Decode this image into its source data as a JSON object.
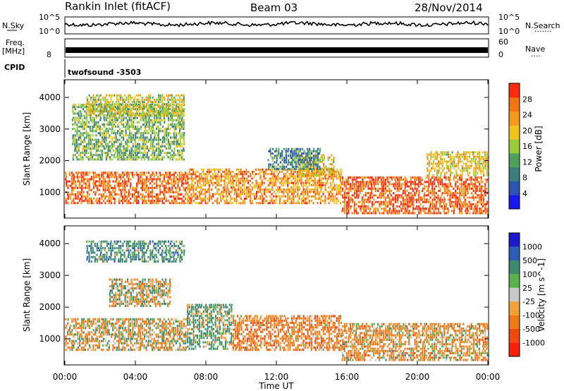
{
  "header": {
    "station": "Rankin Inlet (fitACF)",
    "beam": "Beam 03",
    "date": "28/Nov/2014"
  },
  "top_panel": {
    "nsky_label": "N.Sky",
    "nsky_ticks": [
      "10^5",
      "10^0"
    ],
    "nsearch_label": "N.Search",
    "nsearch_ticks": [
      "10^5",
      "10^0"
    ],
    "freq_label": "Freq.",
    "freq_unit": "[MHz]",
    "freq_ticks": [
      "",
      "8"
    ],
    "nave_label": "Nave",
    "nave_ticks": [
      "60",
      "0"
    ],
    "cpid_label": "CPID",
    "cpid_value": "twofsound -3503"
  },
  "chart_data": [
    {
      "type": "heatmap",
      "name": "power",
      "xlabel": "Time UT",
      "ylabel": "Slant Range [km]",
      "x_ticks": [
        "00:00",
        "04:00",
        "08:00",
        "12:00",
        "16:00",
        "20:00",
        "00:00"
      ],
      "x_range_hours": [
        0,
        24
      ],
      "y_ticks": [
        1000,
        2000,
        3000,
        4000
      ],
      "ylim": [
        180,
        4560
      ],
      "colorbar": {
        "label": "Power [dB]",
        "ticks": [
          4,
          8,
          12,
          16,
          20,
          24,
          28
        ],
        "range": [
          0,
          32
        ],
        "colors": [
          "#1717f0",
          "#2c55b3",
          "#3a7d7a",
          "#4fa05a",
          "#9acb3c",
          "#f2c419",
          "#f59a1a",
          "#f27514",
          "#ff2a0a"
        ]
      },
      "bands": [
        {
          "t0": 0.0,
          "t1": 6.9,
          "r0": 620,
          "r1": 1650,
          "level": 27
        },
        {
          "t0": 6.9,
          "t1": 15.7,
          "r0": 620,
          "r1": 1750,
          "level": 24
        },
        {
          "t0": 13.2,
          "t1": 15.3,
          "r0": 1500,
          "r1": 2200,
          "level": 20
        },
        {
          "t0": 15.7,
          "t1": 24.0,
          "r0": 300,
          "r1": 1500,
          "level": 28
        },
        {
          "t0": 0.4,
          "t1": 6.8,
          "r0": 2000,
          "r1": 3800,
          "level": 14
        },
        {
          "t0": 1.2,
          "t1": 6.8,
          "r0": 3400,
          "r1": 4100,
          "level": 18
        },
        {
          "t0": 11.5,
          "t1": 14.5,
          "r0": 1700,
          "r1": 2400,
          "level": 10
        },
        {
          "t0": 20.5,
          "t1": 24.0,
          "r0": 1500,
          "r1": 2300,
          "level": 20
        }
      ]
    },
    {
      "type": "heatmap",
      "name": "velocity",
      "xlabel": "Time UT",
      "ylabel": "Slant Range [km]",
      "x_ticks": [
        "00:00",
        "04:00",
        "08:00",
        "12:00",
        "16:00",
        "20:00",
        "00:00"
      ],
      "x_range_hours": [
        0,
        24
      ],
      "y_ticks": [
        1000,
        2000,
        3000,
        4000
      ],
      "ylim": [
        180,
        4560
      ],
      "colorbar": {
        "label": "Velocity [m s^-1]",
        "ticks": [
          "1000",
          "500",
          "100",
          "25",
          "-25",
          "-100",
          "-500",
          "-1000"
        ],
        "colors": [
          "#1a1acc",
          "#2c5db8",
          "#3d8a6e",
          "#5ab24c",
          "#c8c8c8",
          "#f3a23a",
          "#f07a15",
          "#ee4a10",
          "#ff1f0a"
        ]
      },
      "bands": [
        {
          "t0": 0.0,
          "t1": 6.9,
          "r0": 620,
          "r1": 1650,
          "level": -100
        },
        {
          "t0": 6.9,
          "t1": 9.5,
          "r0": 650,
          "r1": 2100,
          "level": 150
        },
        {
          "t0": 9.5,
          "t1": 15.7,
          "r0": 620,
          "r1": 1750,
          "level": -300
        },
        {
          "t0": 15.7,
          "t1": 24.0,
          "r0": 300,
          "r1": 1500,
          "level": -200
        },
        {
          "t0": 2.5,
          "t1": 6.0,
          "r0": 2000,
          "r1": 2900,
          "level": 0
        },
        {
          "t0": 1.2,
          "t1": 6.8,
          "r0": 3400,
          "r1": 4100,
          "level": 300
        }
      ]
    }
  ]
}
